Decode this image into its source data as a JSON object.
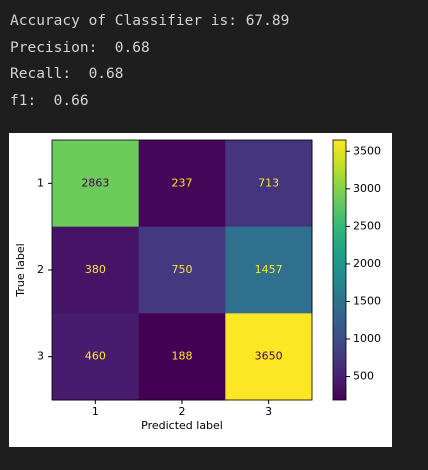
{
  "output_lines": [
    "Accuracy of Classifier is: 67.89",
    "Precision:  0.68",
    "Recall:  0.68",
    "f1:  0.66"
  ],
  "chart_data": {
    "type": "heatmap",
    "x_categories": [
      "1",
      "2",
      "3"
    ],
    "y_categories": [
      "1",
      "2",
      "3"
    ],
    "values": [
      [
        2863,
        237,
        713
      ],
      [
        380,
        750,
        1457
      ],
      [
        460,
        188,
        3650
      ]
    ],
    "xlabel": "Predicted label",
    "ylabel": "True label",
    "colormap": "viridis",
    "colorbar": true,
    "clim": [
      188,
      3650
    ],
    "cticks": [
      500,
      1000,
      1500,
      2000,
      2500,
      3000,
      3500
    ]
  }
}
